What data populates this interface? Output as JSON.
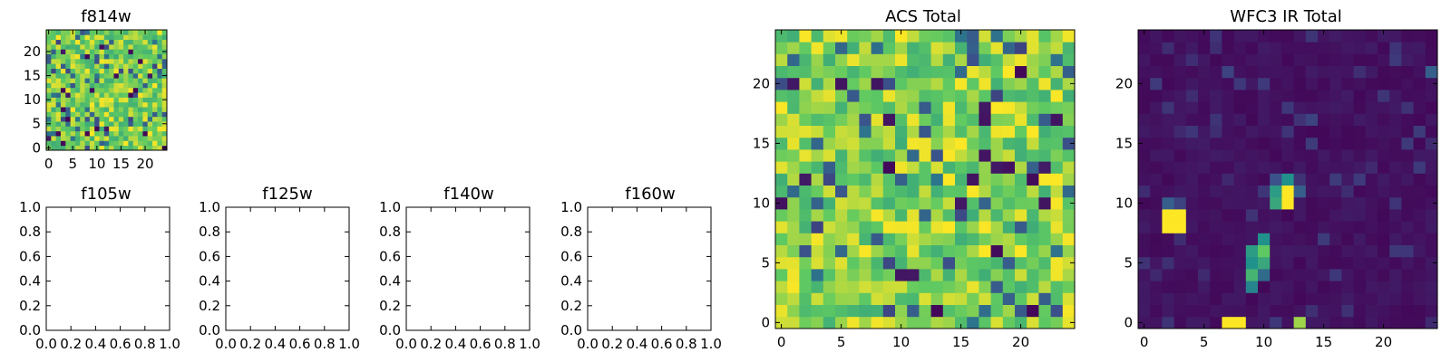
{
  "figure": {
    "colors": {
      "background": "#ffffff",
      "axis": "#000000",
      "colormap": [
        "#440154",
        "#3b528b",
        "#21918c",
        "#5ec962",
        "#fde725"
      ]
    }
  },
  "chart_data": [
    {
      "type": "heatmap",
      "id": "f814w",
      "title": "f814w",
      "xlim": [
        -0.5,
        24.5
      ],
      "ylim": [
        -0.5,
        24.5
      ],
      "xticks": [
        0,
        5,
        10,
        15,
        20
      ],
      "yticks": [
        0,
        5,
        10,
        15,
        20
      ],
      "xtick_labels": [
        "0",
        "5",
        "10",
        "15",
        "20"
      ],
      "ytick_labels": [
        "0",
        "5",
        "10",
        "15",
        "20"
      ],
      "grid_shape": [
        25,
        25
      ],
      "value_range": [
        0,
        1
      ],
      "note": "pixel values are dense random noise; generated procedurally"
    },
    {
      "type": "heatmap",
      "id": "f105w",
      "title": "f105w",
      "empty": true,
      "xlim": [
        0.0,
        1.0
      ],
      "ylim": [
        0.0,
        1.0
      ],
      "xticks": [
        0,
        0.2,
        0.4,
        0.6,
        0.8,
        1.0
      ],
      "yticks": [
        0,
        0.2,
        0.4,
        0.6,
        0.8,
        1.0
      ],
      "xtick_labels": [
        "0.0",
        "0.2",
        "0.4",
        "0.6",
        "0.8",
        "1.0"
      ],
      "ytick_labels": [
        "0.0",
        "0.2",
        "0.4",
        "0.6",
        "0.8",
        "1.0"
      ]
    },
    {
      "type": "heatmap",
      "id": "f125w",
      "title": "f125w",
      "empty": true,
      "xlim": [
        0.0,
        1.0
      ],
      "ylim": [
        0.0,
        1.0
      ],
      "xticks": [
        0,
        0.2,
        0.4,
        0.6,
        0.8,
        1.0
      ],
      "yticks": [
        0,
        0.2,
        0.4,
        0.6,
        0.8,
        1.0
      ],
      "xtick_labels": [
        "0.0",
        "0.2",
        "0.4",
        "0.6",
        "0.8",
        "1.0"
      ],
      "ytick_labels": [
        "0.0",
        "0.2",
        "0.4",
        "0.6",
        "0.8",
        "1.0"
      ]
    },
    {
      "type": "heatmap",
      "id": "f140w",
      "title": "f140w",
      "empty": true,
      "xlim": [
        0.0,
        1.0
      ],
      "ylim": [
        0.0,
        1.0
      ],
      "xticks": [
        0,
        0.2,
        0.4,
        0.6,
        0.8,
        1.0
      ],
      "yticks": [
        0,
        0.2,
        0.4,
        0.6,
        0.8,
        1.0
      ],
      "xtick_labels": [
        "0.0",
        "0.2",
        "0.4",
        "0.6",
        "0.8",
        "1.0"
      ],
      "ytick_labels": [
        "0.0",
        "0.2",
        "0.4",
        "0.6",
        "0.8",
        "1.0"
      ]
    },
    {
      "type": "heatmap",
      "id": "f160w",
      "title": "f160w",
      "empty": true,
      "xlim": [
        0.0,
        1.0
      ],
      "ylim": [
        0.0,
        1.0
      ],
      "xticks": [
        0,
        0.2,
        0.4,
        0.6,
        0.8,
        1.0
      ],
      "yticks": [
        0,
        0.2,
        0.4,
        0.6,
        0.8,
        1.0
      ],
      "xtick_labels": [
        "0.0",
        "0.2",
        "0.4",
        "0.6",
        "0.8",
        "1.0"
      ],
      "ytick_labels": [
        "0.0",
        "0.2",
        "0.4",
        "0.6",
        "0.8",
        "1.0"
      ]
    },
    {
      "type": "heatmap",
      "id": "acs_total",
      "title": "ACS Total",
      "xlim": [
        -0.5,
        24.5
      ],
      "ylim": [
        -0.5,
        24.5
      ],
      "xticks": [
        0,
        5,
        10,
        15,
        20
      ],
      "yticks": [
        0,
        5,
        10,
        15,
        20
      ],
      "xtick_labels": [
        "0",
        "5",
        "10",
        "15",
        "20"
      ],
      "ytick_labels": [
        "0",
        "5",
        "10",
        "15",
        "20"
      ],
      "grid_shape": [
        25,
        25
      ],
      "value_range": [
        0,
        1
      ],
      "note": "pixel values are dense random noise, mostly green/yellow; generated procedurally"
    },
    {
      "type": "heatmap",
      "id": "wfc3_ir_total",
      "title": "WFC3 IR Total",
      "xlim": [
        -0.5,
        24.5
      ],
      "ylim": [
        -0.5,
        24.5
      ],
      "xticks": [
        0,
        5,
        10,
        15,
        20
      ],
      "yticks": [
        0,
        5,
        10,
        15,
        20
      ],
      "xtick_labels": [
        "0",
        "5",
        "10",
        "15",
        "20"
      ],
      "ytick_labels": [
        "0",
        "5",
        "10",
        "15",
        "20"
      ],
      "grid_shape": [
        25,
        25
      ],
      "value_range": [
        0,
        1
      ],
      "background_level": 0.05,
      "bright_pixels": [
        {
          "x": 2,
          "y": 8,
          "value": 1.0
        },
        {
          "x": 3,
          "y": 8,
          "value": 1.0
        },
        {
          "x": 2,
          "y": 9,
          "value": 1.0
        },
        {
          "x": 3,
          "y": 9,
          "value": 1.0
        },
        {
          "x": 2,
          "y": 10,
          "value": 0.3
        },
        {
          "x": 3,
          "y": 10,
          "value": 0.2
        },
        {
          "x": 7,
          "y": 0,
          "value": 1.0
        },
        {
          "x": 8,
          "y": 0,
          "value": 1.0
        },
        {
          "x": 13,
          "y": 0,
          "value": 0.85
        },
        {
          "x": 9,
          "y": 3,
          "value": 0.45
        },
        {
          "x": 9,
          "y": 4,
          "value": 0.65
        },
        {
          "x": 9,
          "y": 5,
          "value": 0.5
        },
        {
          "x": 9,
          "y": 6,
          "value": 0.55
        },
        {
          "x": 10,
          "y": 4,
          "value": 0.35
        },
        {
          "x": 10,
          "y": 5,
          "value": 0.6
        },
        {
          "x": 10,
          "y": 6,
          "value": 0.75
        },
        {
          "x": 10,
          "y": 7,
          "value": 0.5
        },
        {
          "x": 11,
          "y": 10,
          "value": 0.6
        },
        {
          "x": 11,
          "y": 11,
          "value": 0.55
        },
        {
          "x": 12,
          "y": 10,
          "value": 1.0
        },
        {
          "x": 12,
          "y": 11,
          "value": 1.0
        },
        {
          "x": 12,
          "y": 12,
          "value": 0.5
        },
        {
          "x": 13,
          "y": 11,
          "value": 0.3
        },
        {
          "x": 11,
          "y": 12,
          "value": 0.25
        },
        {
          "x": 24,
          "y": 21,
          "value": 0.3
        },
        {
          "x": 7,
          "y": 21,
          "value": 0.2
        },
        {
          "x": 14,
          "y": 17,
          "value": 0.2
        }
      ]
    }
  ]
}
